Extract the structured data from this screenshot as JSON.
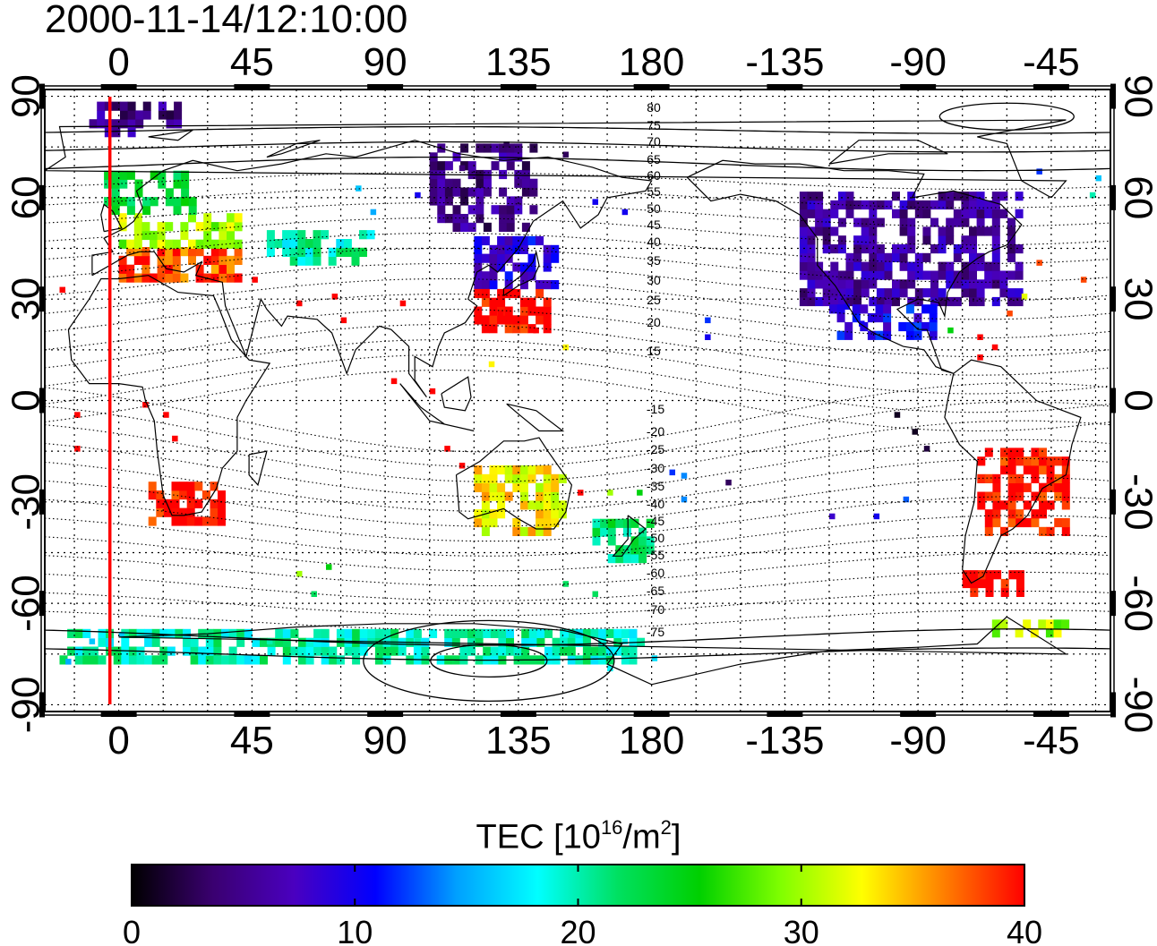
{
  "timestamp": "2000-11-14/12:10:00",
  "map": {
    "lon_ticks_top": [
      "0",
      "45",
      "90",
      "135",
      "180",
      "-135",
      "-90",
      "-45"
    ],
    "lon_ticks_bottom": [
      "0",
      "45",
      "90",
      "135",
      "180",
      "-135",
      "-90",
      "-45"
    ],
    "lat_ticks_left": [
      "90",
      "60",
      "30",
      "0",
      "-30",
      "-60",
      "-90"
    ],
    "lat_ticks_right": [
      "90",
      "60",
      "30",
      "0",
      "-30",
      "-60",
      "-90"
    ],
    "lon_range": [
      -25,
      335
    ],
    "lat_range": [
      -92,
      92
    ],
    "contour_labels_north": [
      "80",
      "75",
      "70",
      "65",
      "60",
      "55",
      "50",
      "45",
      "40",
      "35",
      "30",
      "25",
      "20",
      "15"
    ],
    "contour_labels_south": [
      "-15",
      "-20",
      "-25",
      "-30",
      "-35",
      "-40",
      "-45",
      "-50",
      "-55",
      "-60",
      "-65",
      "-70",
      "-75"
    ],
    "marker_longitude": -3,
    "marker_color": "#ff0000"
  },
  "colorbar": {
    "title_main": "TEC  [10",
    "title_exp": "16",
    "title_mid": "/m",
    "title_exp2": "2",
    "title_end": "]",
    "min": 0,
    "max": 40,
    "tick_labels": [
      "0",
      "10",
      "20",
      "30",
      "40"
    ],
    "colormap": [
      "#000000",
      "#3a0070",
      "#4a00c0",
      "#0000ff",
      "#00a0ff",
      "#00ffff",
      "#00e060",
      "#00d000",
      "#80ff00",
      "#ffff00",
      "#ff8000",
      "#ff0000"
    ]
  },
  "chart_data": {
    "type": "heatmap",
    "title": "2000-11-14/12:10:00",
    "xlabel": "",
    "ylabel": "",
    "colorbar_label": "TEC [10^16/m^2]",
    "value_range": [
      0,
      40
    ],
    "x_ticks": [
      0,
      45,
      90,
      135,
      180,
      -135,
      -90,
      -45
    ],
    "y_ticks": [
      90,
      60,
      30,
      0,
      -30,
      -60,
      -90
    ],
    "regions": [
      {
        "lon": [
          0,
          40
        ],
        "lat": [
          35,
          45
        ],
        "tec": 38
      },
      {
        "lon": [
          0,
          40
        ],
        "lat": [
          45,
          55
        ],
        "tec": 30
      },
      {
        "lon": [
          -5,
          25
        ],
        "lat": [
          55,
          68
        ],
        "tec": 23
      },
      {
        "lon": [
          -10,
          20
        ],
        "lat": [
          78,
          86
        ],
        "tec": 5
      },
      {
        "lon": [
          10,
          35
        ],
        "lat": [
          -37,
          -25
        ],
        "tec": 40
      },
      {
        "lon": [
          120,
          148
        ],
        "lat": [
          33,
          48
        ],
        "tec": 9
      },
      {
        "lon": [
          120,
          145
        ],
        "lat": [
          20,
          33
        ],
        "tec": 40
      },
      {
        "lon": [
          105,
          140
        ],
        "lat": [
          50,
          75
        ],
        "tec": 5
      },
      {
        "lon": [
          230,
          305
        ],
        "lat": [
          28,
          60
        ],
        "tec": 6
      },
      {
        "lon": [
          240,
          275
        ],
        "lat": [
          18,
          28
        ],
        "tec": 10
      },
      {
        "lon": [
          290,
          320
        ],
        "lat": [
          -40,
          -15
        ],
        "tec": 40
      },
      {
        "lon": [
          285,
          305
        ],
        "lat": [
          -58,
          -52
        ],
        "tec": 40
      },
      {
        "lon": [
          120,
          150
        ],
        "lat": [
          -40,
          -20
        ],
        "tec": 33
      },
      {
        "lon": [
          160,
          180
        ],
        "lat": [
          -48,
          -35
        ],
        "tec": 22
      },
      {
        "lon": [
          50,
          85
        ],
        "lat": [
          40,
          50
        ],
        "tec": 20
      },
      {
        "lon": [
          -20,
          175
        ],
        "lat": [
          -78,
          -70
        ],
        "tec": 20
      },
      {
        "lon": [
          295,
          320
        ],
        "lat": [
          -70,
          -65
        ],
        "tec": 30
      }
    ]
  }
}
